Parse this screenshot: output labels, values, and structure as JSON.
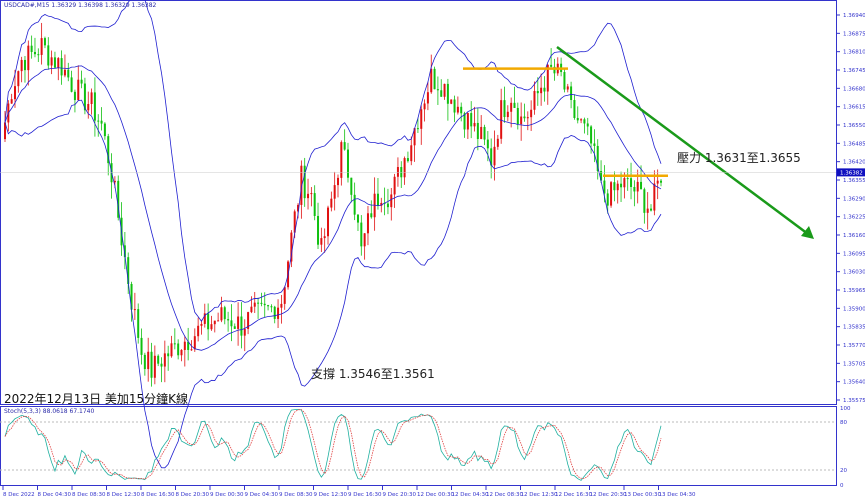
{
  "chart_data": {
    "type": "candlestick",
    "symbol_header": "USDCAD#,M15  1.36329 1.36398 1.36329 1.36382",
    "title": "2022年12月13日 美加15分鐘K線",
    "current_price": "1.36382",
    "ylim": [
      1.35575,
      1.3697
    ],
    "y_ticks": [
      "1.36940",
      "1.36875",
      "1.36810",
      "1.36745",
      "1.36680",
      "1.36615",
      "1.36550",
      "1.36485",
      "1.36420",
      "1.36355",
      "1.36290",
      "1.36225",
      "1.36160",
      "1.36095",
      "1.36030",
      "1.35965",
      "1.35900",
      "1.35835",
      "1.35770",
      "1.35705",
      "1.35640",
      "1.35575"
    ],
    "x_ticks": [
      "8 Dec 2022",
      "8 Dec 04:30",
      "8 Dec 08:30",
      "8 Dec 12:30",
      "8 Dec 16:30",
      "8 Dec 20:30",
      "9 Dec 00:30",
      "9 Dec 04:30",
      "9 Dec 08:30",
      "9 Dec 12:30",
      "9 Dec 16:30",
      "9 Dec 20:30",
      "12 Dec 00:30",
      "12 Dec 04:30",
      "12 Dec 08:30",
      "12 Dec 12:30",
      "12 Dec 16:30",
      "12 Dec 20:30",
      "13 Dec 00:30",
      "13 Dec 04:30"
    ],
    "approx_closes": [
      1.365,
      1.3668,
      1.3678,
      1.368,
      1.3683,
      1.3679,
      1.3676,
      1.367,
      1.3665,
      1.3662,
      1.3655,
      1.3638,
      1.3615,
      1.3593,
      1.3575,
      1.3568,
      1.3572,
      1.3575,
      1.3578,
      1.358,
      1.3583,
      1.3585,
      1.3587,
      1.3586,
      1.3584,
      1.3587,
      1.3588,
      1.359,
      1.3593,
      1.3615,
      1.3636,
      1.363,
      1.361,
      1.3628,
      1.3646,
      1.3635,
      1.361,
      1.3625,
      1.3632,
      1.363,
      1.364,
      1.365,
      1.3662,
      1.3672,
      1.367,
      1.3665,
      1.366,
      1.3655,
      1.365,
      1.3643,
      1.366,
      1.3666,
      1.3657,
      1.366,
      1.3669,
      1.3674,
      1.3672,
      1.366,
      1.3655,
      1.3648,
      1.3632,
      1.363,
      1.3634,
      1.3633,
      1.363,
      1.3625,
      1.3638
    ],
    "indicators": {
      "bollinger": true,
      "stochastic": {
        "label": "Stoch(5,3,3) 88.0618 67.1740",
        "levels": [
          "100",
          "80",
          "20",
          "0"
        ]
      }
    },
    "annotations": {
      "resistance": "壓力 1.3631至1.3655",
      "support": "支撐 1.3546至1.3561",
      "horizontal_lines": [
        1.3675,
        1.3637
      ],
      "trendline": {
        "from": 1.3686,
        "to": 1.3618
      }
    },
    "colors": {
      "bull": "#e01010",
      "bear": "#10c010",
      "bands": "#2020d0",
      "trend": "#1a9a1a",
      "level": "#f2a900",
      "axis": "#3333cc"
    }
  }
}
